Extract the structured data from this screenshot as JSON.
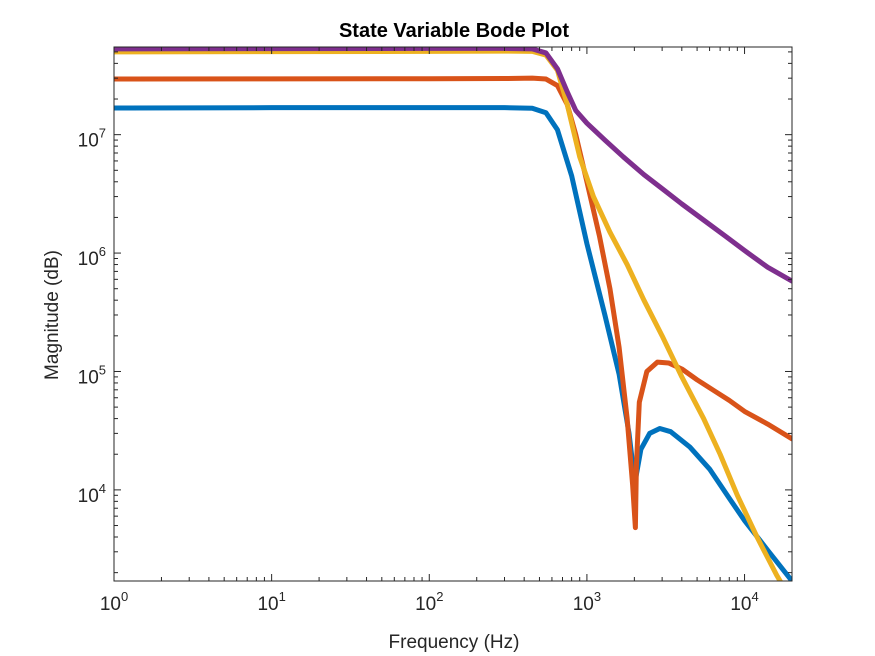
{
  "chart_data": {
    "type": "line",
    "title": "State Variable Bode Plot",
    "xlabel": "Frequency (Hz)",
    "ylabel": "Magnitude (dB)",
    "xscale": "log",
    "yscale": "log",
    "xlim": [
      1,
      20000
    ],
    "ylim": [
      1700,
      55000000
    ],
    "xticks": [
      {
        "value": 1,
        "base": "10",
        "exp": "0"
      },
      {
        "value": 10,
        "base": "10",
        "exp": "1"
      },
      {
        "value": 100,
        "base": "10",
        "exp": "2"
      },
      {
        "value": 1000,
        "base": "10",
        "exp": "3"
      },
      {
        "value": 10000,
        "base": "10",
        "exp": "4"
      }
    ],
    "yticks": [
      {
        "value": 10000,
        "base": "10",
        "exp": "4"
      },
      {
        "value": 100000,
        "base": "10",
        "exp": "5"
      },
      {
        "value": 1000000,
        "base": "10",
        "exp": "6"
      },
      {
        "value": 10000000,
        "base": "10",
        "exp": "7"
      }
    ],
    "grid": false,
    "legend": "none",
    "series": [
      {
        "color": "#0072BD",
        "x": [
          1,
          10,
          100,
          300,
          450,
          550,
          650,
          800,
          1000,
          1300,
          1600,
          1850,
          1980,
          2050,
          2200,
          2500,
          2900,
          3400,
          4500,
          6000,
          8000,
          10000,
          14000,
          20000
        ],
        "y": [
          16800000,
          16900000,
          16900000,
          16900000,
          16700000,
          15300000,
          11000000,
          4500000,
          1200000,
          300000,
          95000,
          30000,
          14000,
          13000,
          22000,
          30000,
          33000,
          31000,
          23000,
          15000,
          8500,
          5500,
          3100,
          1700
        ]
      },
      {
        "color": "#D95319",
        "x": [
          1,
          10,
          100,
          300,
          450,
          550,
          650,
          750,
          850,
          1000,
          1200,
          1400,
          1600,
          1800,
          1950,
          2030,
          2060,
          2150,
          2400,
          2800,
          3300,
          4000,
          5000,
          6500,
          8000,
          10000,
          14000,
          20000
        ],
        "y": [
          29500000,
          29600000,
          29700000,
          29800000,
          30000000,
          29500000,
          26000000,
          18000000,
          10000000,
          4000000,
          1400000,
          500000,
          160000,
          40000,
          11000,
          4800,
          16000,
          55000,
          100000,
          120000,
          118000,
          105000,
          85000,
          68000,
          57000,
          46000,
          36000,
          27000
        ]
      },
      {
        "color": "#EDB120",
        "x": [
          1,
          10,
          100,
          300,
          450,
          550,
          650,
          750,
          900,
          1100,
          1400,
          1800,
          2300,
          3000,
          4000,
          5500,
          7000,
          9000,
          12000,
          16000,
          20000
        ],
        "y": [
          50000000,
          50300000,
          50500000,
          50800000,
          50500000,
          47000000,
          35000000,
          18000000,
          6500000,
          3000000,
          1500000,
          800000,
          400000,
          200000,
          90000,
          40000,
          20000,
          9000,
          4000,
          1900,
          1150
        ]
      },
      {
        "color": "#7E2F8E",
        "x": [
          1,
          10,
          100,
          300,
          450,
          550,
          650,
          750,
          850,
          1000,
          1300,
          1700,
          2300,
          3000,
          4000,
          5500,
          7500,
          10000,
          14000,
          20000
        ],
        "y": [
          53000000,
          53300000,
          53500000,
          53500000,
          53000000,
          49000000,
          36000000,
          23000000,
          16000000,
          12500000,
          9000000,
          6500000,
          4600000,
          3500000,
          2600000,
          1900000,
          1400000,
          1050000,
          760000,
          580000
        ]
      }
    ]
  }
}
